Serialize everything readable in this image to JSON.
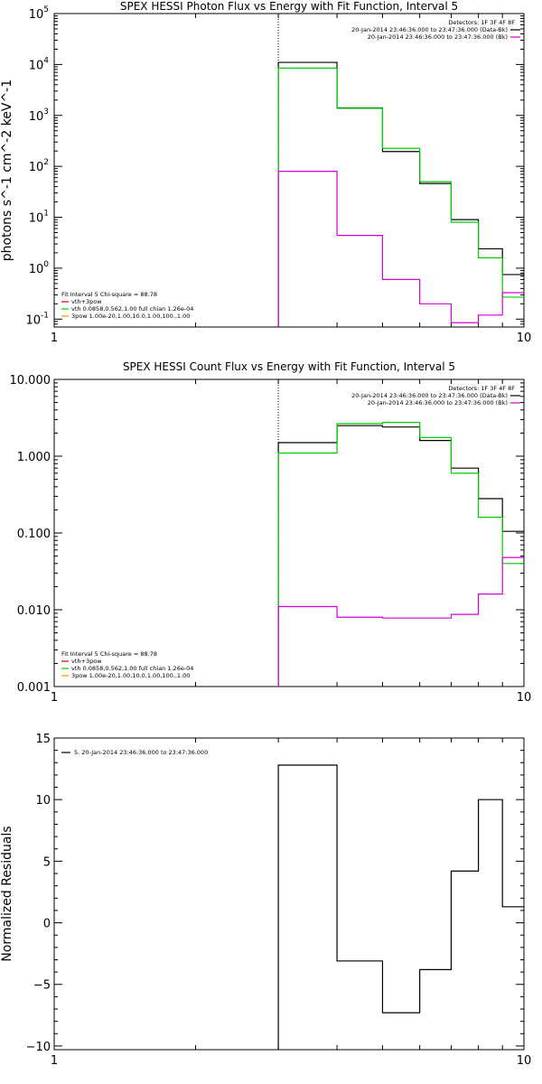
{
  "chart_data": [
    {
      "type": "line",
      "title": "SPEX HESSI Photon Flux vs Energy with Fit Function, Interval 5",
      "xlabel": "",
      "ylabel": "photons s^-1 cm^-2 keV^-1",
      "x_scale": "log",
      "y_scale": "log",
      "xlim": [
        1,
        10
      ],
      "ylim": [
        0.07,
        100000
      ],
      "x_ticks": [
        1,
        10
      ],
      "x_tick_labels": [
        "1",
        "10"
      ],
      "y_ticks": [
        0.1,
        1,
        10,
        100,
        1000,
        10000,
        100000
      ],
      "y_tick_labels": [
        "10",
        "10",
        "10",
        "10",
        "10",
        "10",
        "10"
      ],
      "y_tick_exps": [
        "-1",
        "0",
        "1",
        "2",
        "3",
        "4",
        "5"
      ],
      "vline": 3,
      "legend_top": {
        "placement": "top-right",
        "header": "Detectors: 1F 3F 4F 8F",
        "entries": [
          {
            "label": "20-Jan-2014 23:46:36.000 to 23:47:36.000 (Data-Bk)",
            "color": "#000000"
          },
          {
            "label": "20-Jan-2014 23:46:36.000 to 23:47:36.000 (Bk)",
            "color": "#d400d4"
          }
        ]
      },
      "legend_bottom": {
        "placement": "bottom-left",
        "header": "Fit Interval 5   Chi-square = 88.78",
        "entries": [
          {
            "label": "vth+3pow",
            "color": "#cc0000"
          },
          {
            "label": "vth 0.0858,0.562,1.00  full chian 1.26e-04",
            "color": "#00cc00"
          },
          {
            "label": "3pow 1.00e-20,1.00,10.0,1.00,100.,1.00",
            "color": "#e0a000"
          }
        ]
      },
      "edges": [
        3,
        4,
        5,
        6,
        7,
        8,
        9,
        10
      ],
      "series": [
        {
          "name": "Data-Bk",
          "color": "#000000",
          "values": [
            11000,
            1400,
            195,
            46,
            9,
            2.4,
            0.75
          ]
        },
        {
          "name": "vth 0.0858,0.562,1.00  full chian 1.26e-04",
          "color": "#00cc00",
          "values": [
            8500,
            1380,
            225,
            50,
            8,
            1.6,
            0.27
          ]
        },
        {
          "name": "Bk",
          "color": "#d400d4",
          "values": [
            80,
            4.4,
            0.6,
            0.2,
            0.085,
            0.12,
            0.33
          ]
        }
      ]
    },
    {
      "type": "line",
      "title": "SPEX HESSI Count Flux vs Energy with Fit Function, Interval 5",
      "xlabel": "",
      "ylabel": "",
      "x_scale": "log",
      "y_scale": "log",
      "xlim": [
        1,
        10
      ],
      "ylim": [
        0.001,
        10
      ],
      "x_ticks": [
        1,
        10
      ],
      "x_tick_labels": [
        "1",
        "10"
      ],
      "y_ticks": [
        0.001,
        0.01,
        0.1,
        1,
        10
      ],
      "y_tick_labels": [
        "0.001",
        "0.010",
        "0.100",
        "1.000",
        "10.000"
      ],
      "vline": 3,
      "legend_top": {
        "placement": "top-right",
        "header": "Detectors: 1F 3F 4F 8F",
        "entries": [
          {
            "label": "20-Jan-2014 23:46:36.000 to 23:47:36.000 (Data-Bk)",
            "color": "#000000"
          },
          {
            "label": "20-Jan-2014 23:46:36.000 to 23:47:36.000 (Bk)",
            "color": "#d400d4"
          }
        ]
      },
      "legend_bottom": {
        "placement": "bottom-left",
        "header": "Fit Interval 5   Chi-square = 88.78",
        "entries": [
          {
            "label": "vth+3pow",
            "color": "#cc0000"
          },
          {
            "label": "vth 0.0858,0.562,1.00  full chian 1.26e-04",
            "color": "#00cc00"
          },
          {
            "label": "3pow 1.00e-20,1.00,10.0,1.00,100.,1.00",
            "color": "#e0a000"
          }
        ]
      },
      "edges": [
        3,
        4,
        5,
        6,
        7,
        8,
        9,
        10
      ],
      "series": [
        {
          "name": "Data-Bk",
          "color": "#000000",
          "values": [
            1.5,
            2.5,
            2.4,
            1.6,
            0.7,
            0.28,
            0.105
          ]
        },
        {
          "name": "vth 0.0858,0.562,1.00  full chian 1.26e-04",
          "color": "#00cc00",
          "values": [
            1.1,
            2.65,
            2.75,
            1.75,
            0.6,
            0.16,
            0.04
          ]
        },
        {
          "name": "Bk",
          "color": "#d400d4",
          "values": [
            0.011,
            0.008,
            0.0078,
            0.0078,
            0.0087,
            0.016,
            0.048
          ]
        }
      ]
    },
    {
      "type": "line",
      "title": "",
      "xlabel": "",
      "ylabel": "Normalized Residuals",
      "x_scale": "log",
      "y_scale": "linear",
      "xlim": [
        1,
        10
      ],
      "ylim": [
        -10.3,
        15
      ],
      "x_ticks": [
        1,
        10
      ],
      "x_tick_labels": [
        "1",
        "10"
      ],
      "y_ticks": [
        -10,
        -5,
        0,
        5,
        10,
        15
      ],
      "y_tick_labels": [
        "−10",
        "−5",
        "0",
        "5",
        "10",
        "15"
      ],
      "legend": {
        "placement": "top-left",
        "entries": [
          {
            "label": "5. 20-Jan-2014 23:46:36.000 to 23:47:36.000",
            "color": "#000000"
          }
        ]
      },
      "edges": [
        3,
        4,
        5,
        6,
        7,
        8,
        9,
        10
      ],
      "series": [
        {
          "name": "5. 20-Jan-2014 23:46:36.000 to 23:47:36.000",
          "color": "#000000",
          "values": [
            12.8,
            -3.1,
            -7.3,
            -3.8,
            4.2,
            10,
            1.3
          ]
        }
      ]
    }
  ]
}
